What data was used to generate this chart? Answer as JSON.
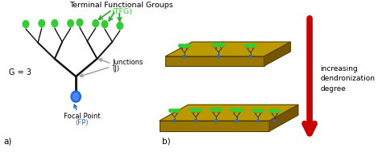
{
  "bg_color": "#ffffff",
  "tree_color": "#111111",
  "terminal_color": "#33cc33",
  "focal_color": "#2266dd",
  "junction_arrow_color": "#999999",
  "tfg_arrow_color": "#33aa33",
  "surface_top_color": "#bb9900",
  "surface_left_color": "#997700",
  "surface_right_color": "#775500",
  "surface_edge_color": "#554400",
  "red_arrow_color": "#cc0000",
  "label_a": "a)",
  "label_b": "b)",
  "title_text": "Terminal Functional Groups",
  "tfg_text": "(TFG)",
  "junction_text": "Junctions",
  "junction_text2": "(J)",
  "focal_text": "Focal Point",
  "focal_text2": "(FP)",
  "g_text": "G = 3",
  "increasing_text": "increasing\ndendronization\ndegree"
}
